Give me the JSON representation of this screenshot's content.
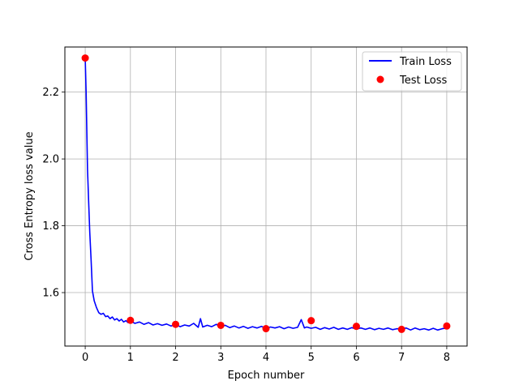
{
  "chart_data": {
    "type": "line",
    "xlabel": "Epoch number",
    "ylabel": "Cross Entropy loss value",
    "xlim": [
      -0.45,
      8.45
    ],
    "ylim": [
      1.44,
      2.335
    ],
    "xticks": [
      "0",
      "1",
      "2",
      "3",
      "4",
      "5",
      "6",
      "7",
      "8"
    ],
    "yticks": [
      "1.6",
      "1.8",
      "2.0",
      "2.2"
    ],
    "grid": true,
    "legend_position": "top-right",
    "series": [
      {
        "name": "Train Loss",
        "kind": "line",
        "color": "#0000ff",
        "x": [
          0,
          0.02,
          0.05,
          0.08,
          0.1,
          0.13,
          0.16,
          0.2,
          0.25,
          0.3,
          0.35,
          0.4,
          0.45,
          0.5,
          0.55,
          0.6,
          0.65,
          0.7,
          0.75,
          0.8,
          0.85,
          0.9,
          0.95,
          1.0,
          1.1,
          1.2,
          1.3,
          1.4,
          1.5,
          1.6,
          1.7,
          1.8,
          1.9,
          2.0,
          2.1,
          2.2,
          2.3,
          2.4,
          2.5,
          2.55,
          2.6,
          2.7,
          2.8,
          2.9,
          3.0,
          3.1,
          3.2,
          3.3,
          3.4,
          3.5,
          3.6,
          3.7,
          3.8,
          3.9,
          4.0,
          4.1,
          4.2,
          4.3,
          4.4,
          4.5,
          4.6,
          4.7,
          4.78,
          4.85,
          4.9,
          5.0,
          5.1,
          5.2,
          5.3,
          5.4,
          5.5,
          5.6,
          5.7,
          5.8,
          5.9,
          6.0,
          6.1,
          6.2,
          6.3,
          6.4,
          6.5,
          6.6,
          6.7,
          6.8,
          6.9,
          7.0,
          7.1,
          7.2,
          7.3,
          7.4,
          7.5,
          7.6,
          7.7,
          7.8,
          7.9,
          8.0
        ],
        "y": [
          2.3,
          2.2,
          1.97,
          1.86,
          1.78,
          1.7,
          1.605,
          1.575,
          1.555,
          1.54,
          1.535,
          1.538,
          1.528,
          1.53,
          1.522,
          1.527,
          1.518,
          1.522,
          1.515,
          1.52,
          1.512,
          1.516,
          1.51,
          1.515,
          1.508,
          1.512,
          1.505,
          1.51,
          1.503,
          1.507,
          1.502,
          1.506,
          1.5,
          1.505,
          1.498,
          1.503,
          1.5,
          1.508,
          1.496,
          1.522,
          1.497,
          1.502,
          1.498,
          1.505,
          1.497,
          1.502,
          1.495,
          1.5,
          1.494,
          1.499,
          1.493,
          1.498,
          1.494,
          1.499,
          1.493,
          1.497,
          1.494,
          1.498,
          1.492,
          1.497,
          1.493,
          1.496,
          1.519,
          1.494,
          1.497,
          1.493,
          1.496,
          1.49,
          1.495,
          1.491,
          1.496,
          1.49,
          1.494,
          1.49,
          1.495,
          1.491,
          1.494,
          1.49,
          1.494,
          1.489,
          1.493,
          1.49,
          1.494,
          1.489,
          1.492,
          1.49,
          1.494,
          1.488,
          1.494,
          1.489,
          1.492,
          1.488,
          1.493,
          1.488,
          1.492,
          1.494
        ]
      },
      {
        "name": "Test Loss",
        "kind": "scatter",
        "color": "#ff0000",
        "x": [
          0,
          1,
          2,
          3,
          4,
          5,
          6,
          7,
          8
        ],
        "y": [
          2.302,
          1.517,
          1.505,
          1.502,
          1.492,
          1.516,
          1.499,
          1.49,
          1.5
        ]
      }
    ]
  }
}
